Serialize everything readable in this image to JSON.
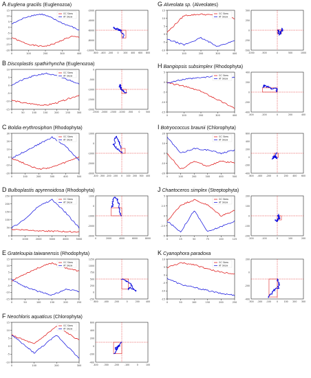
{
  "colors": {
    "gc": "#e02020",
    "at": "#2020e0",
    "walk": "#0000dd",
    "box": "#e02020",
    "axis": "#222222"
  },
  "legend": {
    "gc": "GC Skew",
    "at": "AT Skew"
  },
  "panels": [
    {
      "letter": "A",
      "species": "Euglena gracilis",
      "group": "(Euglenozoa)",
      "yticks": [
        "15",
        "10",
        "5",
        "0",
        "-5",
        "-10",
        "-15",
        "-20"
      ],
      "xticks": [
        "0",
        "100",
        "200",
        "300",
        "400"
      ],
      "wx": [
        "-600",
        "-400",
        "-200",
        "0",
        "200",
        "400",
        "600",
        "800"
      ],
      "wy": [
        "-2000",
        "-4000",
        "-6000",
        "-8000",
        "-10000"
      ]
    },
    {
      "letter": "B",
      "species": "Discoplastis spathirhyncha",
      "group": "(Euglenozoa)",
      "yticks": [
        "10",
        "5",
        "0",
        "-5",
        "-10",
        "-15"
      ],
      "xticks": [
        "0",
        "50",
        "100",
        "150",
        "200",
        "250",
        "300"
      ],
      "wx": [
        "-2500",
        "-2000",
        "-1500",
        "-1000",
        "-500",
        "0",
        "500"
      ],
      "wy": [
        "0",
        "-500",
        "-1000",
        "-1500",
        "-2000"
      ]
    },
    {
      "letter": "C",
      "species": "Boldia erythrosiphon",
      "group": "(Rhodophyta)",
      "yticks": [
        "30",
        "20",
        "10",
        "0",
        "-10",
        "-20"
      ],
      "xticks": [
        "0",
        "100",
        "200",
        "300",
        "400",
        "500"
      ],
      "wx": [
        "-400",
        "-300",
        "-200",
        "-100",
        "0",
        "100",
        "200",
        "300",
        "400"
      ],
      "wy": [
        "1000",
        "0",
        "-1000",
        "-2000",
        "-3000"
      ]
    },
    {
      "letter": "D",
      "species": "Bulboplastis apyrenoidosa",
      "group": "(Rhodophyta)",
      "yticks": [
        "250",
        "200",
        "150",
        "100",
        "50",
        "0"
      ],
      "xticks": [
        "0",
        "1000",
        "2000",
        "3000",
        "4000",
        "5000"
      ],
      "wx": [
        "0",
        "2000",
        "4000",
        "6000",
        "8000"
      ],
      "wy": [
        "1000",
        "0",
        "-1000",
        "-2000",
        "-3000"
      ]
    },
    {
      "letter": "E",
      "species": "Grateloupia taiwanensis",
      "group": "(Rhodophyta)",
      "yticks": [
        "15",
        "10",
        "5",
        "0",
        "-5",
        "-10",
        "-15"
      ],
      "xticks": [
        "0",
        "50",
        "100",
        "150",
        "200",
        "250"
      ],
      "wx": [
        "-600",
        "-400",
        "-200",
        "0",
        "200",
        "400"
      ],
      "wy": [
        "1250",
        "1000",
        "750",
        "500",
        "250",
        "0",
        "-250"
      ]
    },
    {
      "letter": "F",
      "species": "Neochloris aquaticus",
      "group": "(Chlorophyta)",
      "yticks": [
        "15",
        "10",
        "5",
        "0",
        "-5",
        "-10"
      ],
      "xticks": [
        "0",
        "100",
        "200",
        "300"
      ],
      "wx": [
        "-400",
        "-300",
        "-200",
        "-100",
        "0",
        "100"
      ],
      "wy": [
        "600",
        "400",
        "200",
        "0",
        "-200",
        "-400"
      ]
    },
    {
      "letter": "G",
      "species": "Alveolata sp.",
      "group": "(Alveolates)",
      "yticks": [
        "15",
        "10",
        "5",
        "0",
        "-5",
        "-10"
      ],
      "xticks": [
        "0",
        "100",
        "200",
        "300",
        "400"
      ],
      "wx": [
        "-1000",
        "-500",
        "0",
        "500",
        "1000"
      ],
      "wy": [
        "500",
        "250",
        "0",
        "-250",
        "-500"
      ]
    },
    {
      "letter": "H",
      "species": "Bangiopsis subsimplex",
      "group": "(Rhodophyta)",
      "yticks": [
        "5",
        "0",
        "-5",
        "-10",
        "-15"
      ],
      "xticks": [
        "0",
        "100",
        "200",
        "300",
        "400"
      ],
      "wx": [
        "-400",
        "-200",
        "0",
        "200",
        "400"
      ],
      "wy": [
        "400",
        "200",
        "0",
        "-200",
        "-400"
      ]
    },
    {
      "letter": "I",
      "species": "Botryococcus braunii",
      "group": "(Chlorophyta)",
      "yticks": [
        "20",
        "10",
        "0",
        "-10",
        "-20"
      ],
      "xticks": [
        "0",
        "100",
        "200",
        "300",
        "400",
        "500"
      ],
      "wx": [
        "-600",
        "-400",
        "-200",
        "0",
        "200",
        "400",
        "600"
      ],
      "wy": [
        "600",
        "400",
        "200",
        "0",
        "-200",
        "-400"
      ]
    },
    {
      "letter": "J",
      "species": "Chaetoceros simplex",
      "group": "(Streptophyta)",
      "yticks": [
        "5",
        "2.5",
        "0",
        "-2.5",
        "-5"
      ],
      "xticks": [
        "0",
        "25",
        "50",
        "75",
        "100",
        "125"
      ],
      "wx": [
        "-200",
        "-100",
        "0",
        "100",
        "200"
      ],
      "wy": [
        "200",
        "100",
        "0",
        "-100",
        "-200"
      ]
    },
    {
      "letter": "K",
      "species": "Cyanophora paradoxa",
      "group": "",
      "yticks": [
        "10",
        "5",
        "0",
        "-5",
        "-10",
        "-15"
      ],
      "xticks": [
        "0",
        "50",
        "100",
        "150",
        "200",
        "250"
      ],
      "wx": [
        "-300",
        "-200",
        "-100",
        "0",
        "100",
        "200",
        "300"
      ],
      "wy": [
        "200",
        "0",
        "-200",
        "-400"
      ]
    }
  ],
  "chart_data": [
    {
      "type": "line",
      "letter": "A",
      "title": "Euglena gracilis (Euglenozoa)",
      "series": [
        {
          "name": "GC Skew",
          "x": [
            0,
            50,
            100,
            150,
            200,
            250,
            300,
            350,
            400,
            450
          ],
          "values": [
            -10,
            -14,
            -17,
            -19,
            -20,
            -19,
            -16,
            -12,
            -9,
            -10
          ]
        },
        {
          "name": "AT Skew",
          "x": [
            0,
            50,
            100,
            150,
            200,
            250,
            300,
            350,
            400,
            450
          ],
          "values": [
            5,
            9,
            13,
            15,
            16,
            13,
            9,
            5,
            2,
            -2
          ]
        }
      ]
    },
    {
      "type": "line",
      "letter": "B",
      "title": "Discoplastis spathirhyncha (Euglenozoa)",
      "series": [
        {
          "name": "GC Skew",
          "x": [
            0,
            50,
            100,
            150,
            200,
            250,
            300
          ],
          "values": [
            -10,
            -12,
            -13,
            -14,
            -12,
            -9,
            -6
          ]
        },
        {
          "name": "AT Skew",
          "x": [
            0,
            50,
            100,
            150,
            200,
            250,
            300
          ],
          "values": [
            2,
            6,
            9,
            11,
            9,
            6,
            3
          ]
        }
      ]
    },
    {
      "type": "line",
      "letter": "C",
      "title": "Boldia erythrosiphon (Rhodophyta)",
      "series": [
        {
          "name": "GC Skew",
          "x": [
            0,
            100,
            200,
            300,
            400,
            500
          ],
          "values": [
            -2,
            -10,
            -18,
            -15,
            -8,
            0
          ]
        },
        {
          "name": "AT Skew",
          "x": [
            0,
            100,
            200,
            300,
            400,
            500
          ],
          "values": [
            -2,
            8,
            18,
            28,
            15,
            -5
          ]
        }
      ]
    },
    {
      "type": "line",
      "letter": "D",
      "title": "Bulboplastis apyrenoidosa (Rhodophyta)",
      "series": [
        {
          "name": "GC Skew",
          "x": [
            0,
            1000,
            2000,
            3000,
            4000,
            5000
          ],
          "values": [
            20,
            15,
            10,
            5,
            2,
            0
          ]
        },
        {
          "name": "AT Skew",
          "x": [
            0,
            1000,
            2000,
            3000,
            4000,
            5000
          ],
          "values": [
            30,
            100,
            200,
            250,
            150,
            30
          ]
        }
      ]
    },
    {
      "type": "line",
      "letter": "E",
      "title": "Grateloupia taiwanensis (Rhodophyta)",
      "series": [
        {
          "name": "GC Skew",
          "x": [
            0,
            50,
            100,
            150,
            200,
            250
          ],
          "values": [
            -3,
            3,
            8,
            12,
            8,
            5
          ]
        },
        {
          "name": "AT Skew",
          "x": [
            0,
            50,
            100,
            150,
            200,
            250
          ],
          "values": [
            -2,
            -8,
            -12,
            -15,
            -10,
            -12
          ]
        }
      ]
    },
    {
      "type": "line",
      "letter": "F",
      "title": "Neochloris aquaticus (Chlorophyta)",
      "series": [
        {
          "name": "GC Skew",
          "x": [
            0,
            100,
            200,
            300
          ],
          "values": [
            5,
            0,
            10,
            2
          ]
        },
        {
          "name": "AT Skew",
          "x": [
            0,
            100,
            200,
            300
          ],
          "values": [
            5,
            -5,
            5,
            -8
          ]
        }
      ]
    },
    {
      "type": "line",
      "letter": "G",
      "title": "Alveolata sp. (Alveolates)",
      "series": [
        {
          "name": "GC Skew",
          "x": [
            0,
            100,
            200,
            300,
            400
          ],
          "values": [
            0,
            12,
            13,
            12,
            10
          ]
        },
        {
          "name": "AT Skew",
          "x": [
            0,
            100,
            200,
            300,
            400
          ],
          "values": [
            -5,
            -9,
            -4,
            -10,
            -6
          ]
        }
      ]
    },
    {
      "type": "line",
      "letter": "H",
      "title": "Bangiopsis subsimplex (Rhodophyta)",
      "series": [
        {
          "name": "GC Skew",
          "x": [
            0,
            100,
            200,
            300,
            400
          ],
          "values": [
            0,
            -2,
            -5,
            -10,
            -15
          ]
        },
        {
          "name": "AT Skew",
          "x": [
            0,
            100,
            200,
            300,
            400
          ],
          "values": [
            0,
            2,
            3,
            4,
            3
          ]
        }
      ]
    },
    {
      "type": "line",
      "letter": "I",
      "title": "Botryococcus braunii (Chlorophyta)",
      "series": [
        {
          "name": "GC Skew",
          "x": [
            0,
            100,
            200,
            300,
            400,
            500
          ],
          "values": [
            0,
            -10,
            -5,
            -8,
            -5,
            -6
          ]
        },
        {
          "name": "AT Skew",
          "x": [
            0,
            100,
            200,
            300,
            400,
            500
          ],
          "values": [
            10,
            0,
            3,
            2,
            0,
            2
          ]
        }
      ]
    },
    {
      "type": "line",
      "letter": "J",
      "title": "Chaetoceros simplex (Streptophyta)",
      "series": [
        {
          "name": "GC Skew",
          "x": [
            0,
            25,
            50,
            75,
            100,
            125
          ],
          "values": [
            0,
            3,
            4,
            3,
            1,
            2
          ]
        },
        {
          "name": "AT Skew",
          "x": [
            0,
            25,
            50,
            75,
            100,
            125
          ],
          "values": [
            0,
            -2,
            2,
            -2,
            -1,
            0
          ]
        }
      ]
    },
    {
      "type": "line",
      "letter": "K",
      "title": "Cyanophora paradoxa",
      "series": [
        {
          "name": "GC Skew",
          "x": [
            0,
            50,
            100,
            150,
            200,
            250
          ],
          "values": [
            5,
            8,
            7,
            4,
            2,
            1
          ]
        },
        {
          "name": "AT Skew",
          "x": [
            0,
            50,
            100,
            150,
            200,
            250
          ],
          "values": [
            -2,
            -6,
            -8,
            -10,
            -12,
            -13
          ]
        }
      ]
    }
  ]
}
